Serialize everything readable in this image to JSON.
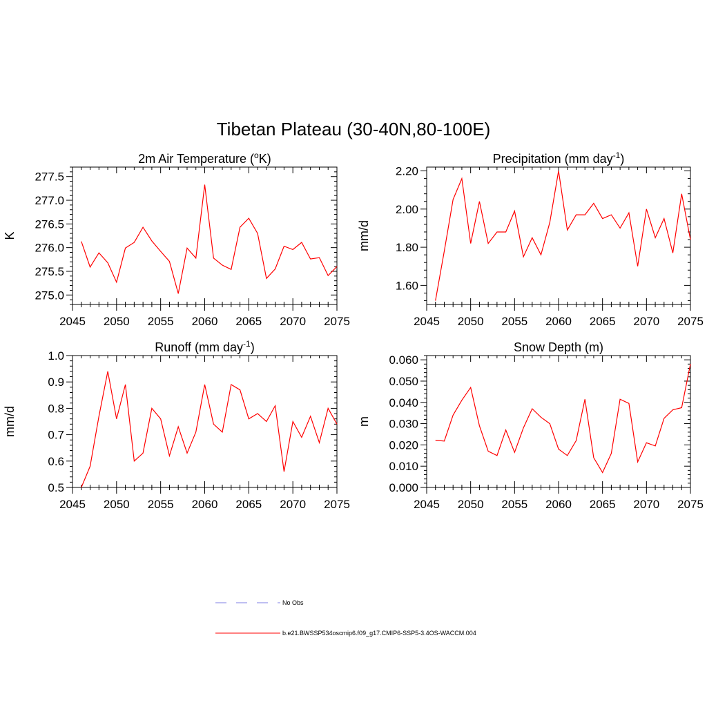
{
  "figure_title": "Tibetan Plateau (30-40N,80-100E)",
  "legend": [
    {
      "label": "No Obs",
      "style": "dashed",
      "color": "#aaaaee"
    },
    {
      "label": "b.e21.BWSSP534oscmip6.f09_g17.CMIP6-SSP5-3.4OS-WACCM.004",
      "style": "solid",
      "color": "#ff0000"
    }
  ],
  "chart_data": [
    {
      "type": "line",
      "title": "2m Air Temperature (°K)",
      "title_base": "2m Air Temperature (",
      "title_sup": "o",
      "title_tail": "K)",
      "ylabel": "K",
      "xlim": [
        2045,
        2075
      ],
      "ylim": [
        274.8,
        277.7
      ],
      "xticks": [
        2045,
        2050,
        2055,
        2060,
        2065,
        2070,
        2075
      ],
      "yticks": [
        275.0,
        275.5,
        276.0,
        276.5,
        277.0,
        277.5
      ],
      "ytick_labels": [
        "275.0",
        "275.5",
        "276.0",
        "276.5",
        "277.0",
        "277.5"
      ],
      "color": "#ff0000",
      "x": [
        2046,
        2047,
        2048,
        2049,
        2050,
        2051,
        2052,
        2053,
        2054,
        2055,
        2056,
        2057,
        2058,
        2059,
        2060,
        2061,
        2062,
        2063,
        2064,
        2065,
        2066,
        2067,
        2068,
        2069,
        2070,
        2071,
        2072,
        2073,
        2074,
        2075
      ],
      "y": [
        276.13,
        275.59,
        275.89,
        275.68,
        275.27,
        275.99,
        276.11,
        276.43,
        276.14,
        275.92,
        275.71,
        275.03,
        275.99,
        275.78,
        277.33,
        275.78,
        275.63,
        275.54,
        276.43,
        276.62,
        276.3,
        275.35,
        275.55,
        276.03,
        275.96,
        276.11,
        275.76,
        275.79,
        275.41,
        275.6
      ]
    },
    {
      "type": "line",
      "title": "Precipitation (mm day-1)",
      "title_base": "Precipitation (mm day",
      "title_sup": "-1",
      "title_tail": ")",
      "ylabel": "mm/d",
      "xlim": [
        2045,
        2075
      ],
      "ylim": [
        1.5,
        2.22
      ],
      "xticks": [
        2045,
        2050,
        2055,
        2060,
        2065,
        2070,
        2075
      ],
      "yticks": [
        1.6,
        1.8,
        2.0,
        2.2
      ],
      "ytick_labels": [
        "1.60",
        "1.80",
        "2.00",
        "2.20"
      ],
      "color": "#ff0000",
      "x": [
        2046,
        2047,
        2048,
        2049,
        2050,
        2051,
        2052,
        2053,
        2054,
        2055,
        2056,
        2057,
        2058,
        2059,
        2060,
        2061,
        2062,
        2063,
        2064,
        2065,
        2066,
        2067,
        2068,
        2069,
        2070,
        2071,
        2072,
        2073,
        2074,
        2075
      ],
      "y": [
        1.52,
        1.78,
        2.05,
        2.16,
        1.82,
        2.04,
        1.82,
        1.88,
        1.88,
        1.99,
        1.75,
        1.85,
        1.76,
        1.93,
        2.2,
        1.89,
        1.97,
        1.97,
        2.03,
        1.95,
        1.97,
        1.9,
        1.98,
        1.7,
        2.0,
        1.85,
        1.95,
        1.77,
        2.08,
        1.84
      ]
    },
    {
      "type": "line",
      "title": "Runoff (mm day-1)",
      "title_base": "Runoff (mm day",
      "title_sup": "-1",
      "title_tail": ")",
      "ylabel": "mm/d",
      "xlim": [
        2045,
        2075
      ],
      "ylim": [
        0.5,
        1.0
      ],
      "xticks": [
        2045,
        2050,
        2055,
        2060,
        2065,
        2070,
        2075
      ],
      "yticks": [
        0.5,
        0.6,
        0.7,
        0.8,
        0.9,
        1.0
      ],
      "ytick_labels": [
        "0.5",
        "0.6",
        "0.7",
        "0.8",
        "0.9",
        "1.0"
      ],
      "color": "#ff0000",
      "x": [
        2046,
        2047,
        2048,
        2049,
        2050,
        2051,
        2052,
        2053,
        2054,
        2055,
        2056,
        2057,
        2058,
        2059,
        2060,
        2061,
        2062,
        2063,
        2064,
        2065,
        2066,
        2067,
        2068,
        2069,
        2070,
        2071,
        2072,
        2073,
        2074,
        2075
      ],
      "y": [
        0.5,
        0.58,
        0.77,
        0.94,
        0.76,
        0.89,
        0.6,
        0.63,
        0.8,
        0.76,
        0.62,
        0.73,
        0.63,
        0.71,
        0.89,
        0.74,
        0.71,
        0.89,
        0.87,
        0.76,
        0.78,
        0.75,
        0.81,
        0.56,
        0.75,
        0.69,
        0.77,
        0.67,
        0.8,
        0.74
      ]
    },
    {
      "type": "line",
      "title": "Snow Depth (m)",
      "title_base": "Snow Depth (m)",
      "title_sup": "",
      "title_tail": "",
      "ylabel": "m",
      "xlim": [
        2045,
        2075
      ],
      "ylim": [
        0.0,
        0.062
      ],
      "xticks": [
        2045,
        2050,
        2055,
        2060,
        2065,
        2070,
        2075
      ],
      "yticks": [
        0.0,
        0.01,
        0.02,
        0.03,
        0.04,
        0.05,
        0.06
      ],
      "ytick_labels": [
        "0.000",
        "0.010",
        "0.020",
        "0.030",
        "0.040",
        "0.050",
        "0.060"
      ],
      "color": "#ff0000",
      "x": [
        2046,
        2047,
        2048,
        2049,
        2050,
        2051,
        2052,
        2053,
        2054,
        2055,
        2056,
        2057,
        2058,
        2059,
        2060,
        2061,
        2062,
        2063,
        2064,
        2065,
        2066,
        2067,
        2068,
        2069,
        2070,
        2071,
        2072,
        2073,
        2074,
        2075
      ],
      "y": [
        0.0222,
        0.0218,
        0.034,
        0.041,
        0.047,
        0.029,
        0.017,
        0.015,
        0.027,
        0.0165,
        0.028,
        0.037,
        0.033,
        0.03,
        0.018,
        0.015,
        0.022,
        0.0415,
        0.014,
        0.007,
        0.016,
        0.0415,
        0.0395,
        0.012,
        0.021,
        0.0195,
        0.0325,
        0.0365,
        0.0375,
        0.058
      ]
    }
  ]
}
